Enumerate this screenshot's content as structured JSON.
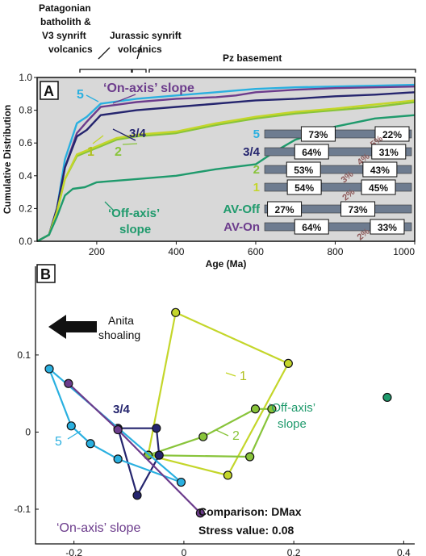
{
  "colors": {
    "s5": "#2ab0e0",
    "s34": "#25256e",
    "s2": "#88c43a",
    "s1": "#c4d62a",
    "offaxis": "#1f9a6c",
    "onaxis": "#6c3c8c",
    "panel_bg": "#d8d8d8",
    "bar": "#6e7c90",
    "bar_light": "#c8d0e0",
    "pct_small": "#8c5858"
  },
  "top_labels": {
    "patagonian_1": "Patagonian",
    "patagonian_2": "batholith &",
    "patagonian_3": "V3 synrift",
    "patagonian_4": "volcanics",
    "jurassic_1": "Jurassic synrift",
    "jurassic_2": "volcanics",
    "pz": "Pz basement"
  },
  "chart_data": [
    {
      "type": "line",
      "panel_label": "A",
      "xlabel": "Age (Ma)",
      "ylabel": "Cumulative Distribution",
      "xlim": [
        50,
        1000
      ],
      "ylim": [
        0,
        1.0
      ],
      "x_ticks": [
        "200",
        "400",
        "600",
        "800",
        "1000"
      ],
      "y_ticks": [
        "0.0",
        "0.2",
        "0.4",
        "0.6",
        "0.8",
        "1.0"
      ],
      "annotations": {
        "s5": "5",
        "on_axis": "‘On-axis’ slope",
        "s34": "3/4",
        "s1": "1",
        "s2": "2",
        "off_axis_1": "‘Off-axis’",
        "off_axis_2": "slope"
      },
      "series": [
        {
          "key": "s5",
          "x": [
            50,
            80,
            100,
            120,
            150,
            175,
            210,
            300,
            400,
            500,
            550,
            600,
            700,
            800,
            900,
            1000
          ],
          "y": [
            0,
            0.04,
            0.2,
            0.5,
            0.72,
            0.76,
            0.84,
            0.87,
            0.89,
            0.91,
            0.92,
            0.93,
            0.94,
            0.945,
            0.95,
            0.955
          ]
        },
        {
          "key": "on",
          "x": [
            50,
            80,
            100,
            120,
            150,
            175,
            210,
            300,
            400,
            500,
            550,
            600,
            700,
            800,
            900,
            1000
          ],
          "y": [
            0,
            0.04,
            0.2,
            0.45,
            0.66,
            0.73,
            0.82,
            0.85,
            0.87,
            0.88,
            0.89,
            0.91,
            0.925,
            0.935,
            0.94,
            0.945
          ]
        },
        {
          "key": "s34",
          "x": [
            50,
            80,
            100,
            120,
            150,
            175,
            210,
            300,
            400,
            500,
            600,
            700,
            800,
            900,
            1000
          ],
          "y": [
            0,
            0.04,
            0.2,
            0.45,
            0.64,
            0.68,
            0.77,
            0.8,
            0.82,
            0.84,
            0.86,
            0.87,
            0.885,
            0.895,
            0.91
          ]
        },
        {
          "key": "s2",
          "x": [
            50,
            80,
            100,
            120,
            150,
            200,
            250,
            300,
            400,
            500,
            550,
            600,
            700,
            800,
            900,
            1000
          ],
          "y": [
            0,
            0.04,
            0.18,
            0.38,
            0.52,
            0.57,
            0.62,
            0.64,
            0.66,
            0.71,
            0.73,
            0.75,
            0.78,
            0.8,
            0.82,
            0.85
          ]
        },
        {
          "key": "s1",
          "x": [
            50,
            80,
            100,
            120,
            150,
            200,
            250,
            300,
            400,
            500,
            550,
            600,
            700,
            800,
            900,
            1000
          ],
          "y": [
            0,
            0.04,
            0.18,
            0.38,
            0.53,
            0.58,
            0.63,
            0.65,
            0.67,
            0.72,
            0.74,
            0.76,
            0.79,
            0.81,
            0.835,
            0.86
          ]
        },
        {
          "key": "off",
          "x": [
            50,
            80,
            100,
            120,
            140,
            170,
            200,
            300,
            400,
            450,
            500,
            600,
            650,
            700,
            800,
            900,
            1000
          ],
          "y": [
            0,
            0.04,
            0.15,
            0.28,
            0.32,
            0.33,
            0.36,
            0.38,
            0.4,
            0.42,
            0.44,
            0.47,
            0.55,
            0.62,
            0.7,
            0.75,
            0.77
          ]
        }
      ],
      "bars": [
        {
          "key": "s5",
          "label": "5",
          "pct_a": "73%",
          "pct_small": "5%",
          "pct_b": "22%"
        },
        {
          "key": "s34",
          "label": "3/4",
          "pct_a": "64%",
          "pct_small": "4%",
          "pct_b": "31%"
        },
        {
          "key": "s2",
          "label": "2",
          "pct_a": "53%",
          "pct_small": "3%",
          "pct_b": "43%"
        },
        {
          "key": "s1",
          "label": "1",
          "pct_a": "54%",
          "pct_small": "2%",
          "pct_b": "45%"
        },
        {
          "key": "off",
          "label": "AV-Off",
          "pct_a": "27%",
          "pct_small": "",
          "pct_b": "73%"
        },
        {
          "key": "on",
          "label": "AV-On",
          "pct_a": "64%",
          "pct_small": "2%",
          "pct_b": "33%"
        }
      ]
    },
    {
      "type": "scatter",
      "panel_label": "B",
      "xlim": [
        -0.27,
        0.42
      ],
      "ylim": [
        -0.145,
        0.215
      ],
      "x_ticks": [
        {
          "v": -0.2,
          "t": "-0.2"
        },
        {
          "v": 0,
          "t": "0"
        },
        {
          "v": 0.2,
          "t": "0.2"
        },
        {
          "v": 0.4,
          "t": "0.4"
        }
      ],
      "y_ticks": [
        {
          "v": 0.1,
          "t": "0.1"
        },
        {
          "v": 0,
          "t": "0"
        },
        {
          "v": -0.1,
          "t": "-0.1"
        }
      ],
      "annotations": {
        "anita_1": "Anita",
        "anita_2": "shoaling",
        "s1": "1",
        "s2": "2",
        "s34": "3/4",
        "s5": "5",
        "off_axis_1": "‘Off-axis’",
        "off_axis_2": "slope",
        "on_axis": "‘On-axis’ slope",
        "comparison": "Comparison: DMax",
        "stress": "Stress value: 0.08"
      },
      "series": [
        {
          "key": "s1",
          "closed": true,
          "x": [
            -0.015,
            0.19,
            0.08,
            -0.065
          ],
          "y": [
            0.155,
            0.089,
            -0.056,
            -0.03
          ]
        },
        {
          "key": "s2",
          "closed": true,
          "x": [
            0.035,
            0.13,
            0.16,
            0.12,
            -0.065
          ],
          "y": [
            -0.006,
            0.03,
            0.03,
            -0.032,
            -0.03
          ]
        },
        {
          "key": "s34",
          "closed": true,
          "x": [
            -0.12,
            -0.05,
            -0.045,
            -0.085
          ],
          "y": [
            0.005,
            0.005,
            -0.03,
            -0.082
          ]
        },
        {
          "key": "s5",
          "closed": true,
          "x": [
            -0.245,
            -0.205,
            -0.17,
            -0.12,
            -0.005
          ],
          "y": [
            0.082,
            0.008,
            -0.015,
            -0.035,
            -0.065
          ]
        },
        {
          "key": "on",
          "closed": false,
          "x": [
            -0.21,
            -0.12,
            0.03
          ],
          "y": [
            0.063,
            0.003,
            -0.105
          ]
        },
        {
          "key": "off",
          "closed": false,
          "x": [
            0.37
          ],
          "y": [
            0.045
          ]
        }
      ]
    }
  ]
}
